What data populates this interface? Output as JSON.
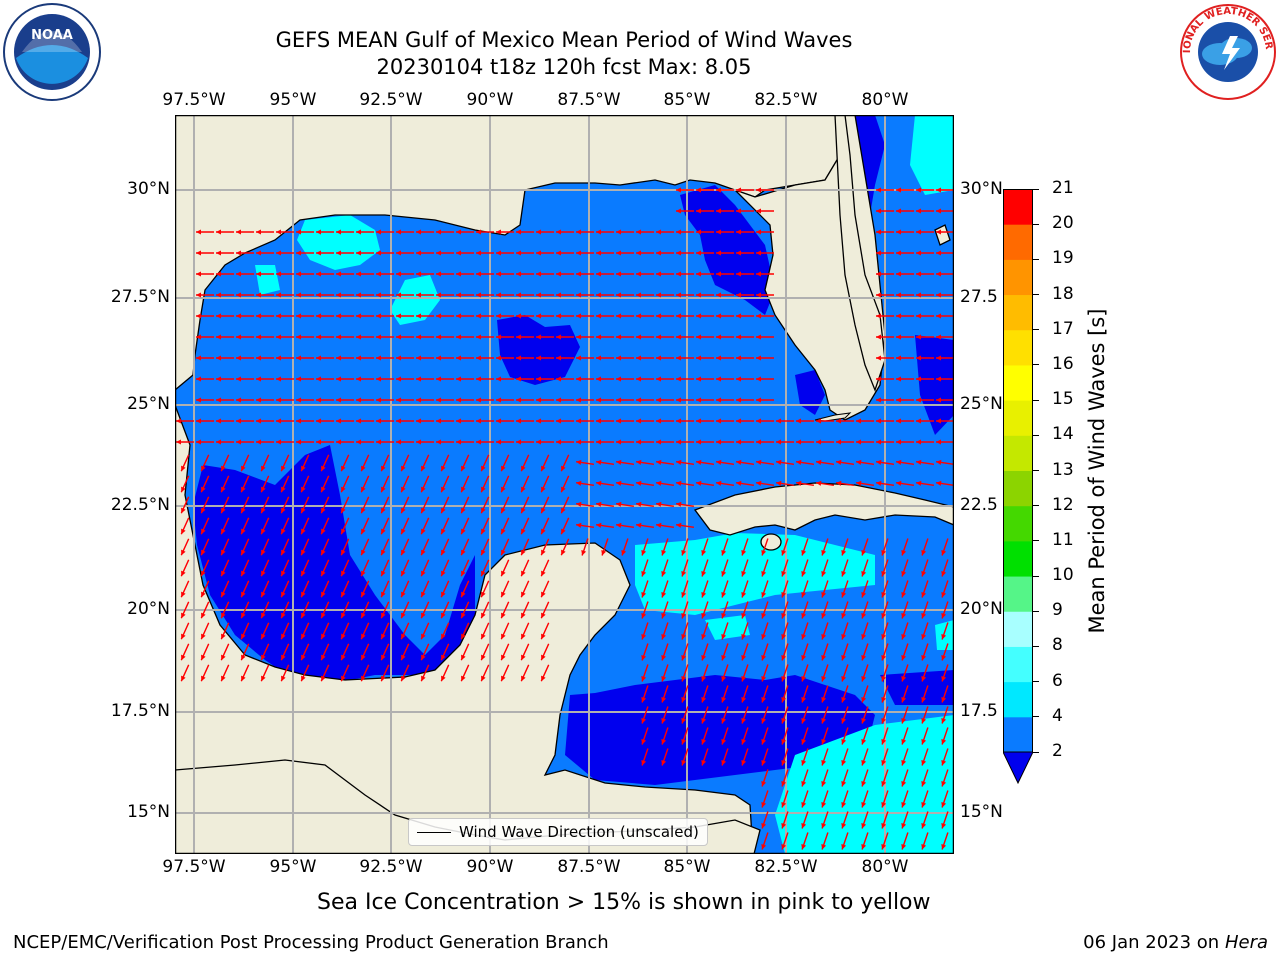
{
  "title": {
    "line1": "GEFS MEAN Gulf of Mexico Mean Period of Wind Waves",
    "line2": "20230104 t18z 120h fcst   Max: 8.05"
  },
  "logos": {
    "left": "NOAA",
    "right": "NATIONAL WEATHER SERVICE"
  },
  "map": {
    "lon_labels": [
      "97.5°W",
      "95°W",
      "92.5°W",
      "90°W",
      "87.5°W",
      "85°W",
      "82.5°W",
      "80°W"
    ],
    "lat_labels_left": [
      "30°N",
      "27.5°N",
      "25°N",
      "22.5°N",
      "20°N",
      "17.5°N",
      "15°N"
    ],
    "lat_labels_right": [
      "30°N",
      "27.5",
      "25°N",
      "22.5",
      "20°N",
      "17.5",
      "15°N"
    ],
    "legend": "Wind Wave Direction (unscaled)",
    "colors": {
      "land": "#efedda",
      "ocean_2_4": "#0a7bff",
      "ocean_lt2": "#0000ee",
      "ocean_4_6": "#00ffff",
      "arrow": "#ff0000",
      "grid": "#b0b0b0"
    }
  },
  "colorbar": {
    "label": "Mean Period of Wind Waves [s]",
    "ticks": [
      "2",
      "4",
      "6",
      "8",
      "9",
      "10",
      "11",
      "12",
      "13",
      "14",
      "15",
      "16",
      "17",
      "18",
      "19",
      "20",
      "21"
    ],
    "colors": [
      "#0a7bff",
      "#00e8ff",
      "#44ffff",
      "#a8ffff",
      "#55f588",
      "#00e000",
      "#44d800",
      "#8cd400",
      "#c4e800",
      "#e8f000",
      "#ffff00",
      "#ffe000",
      "#ffbc00",
      "#ff9400",
      "#ff6a00",
      "#ff3a00",
      "#ff0000"
    ],
    "under_color": "#0000ee"
  },
  "sea_ice_note": "Sea Ice Concentration > 15% is shown in pink to yellow",
  "footer": {
    "left": "NCEP/EMC/Verification Post Processing Product Generation Branch",
    "right_date": "06 Jan 2023 on ",
    "right_host": "Hera"
  }
}
